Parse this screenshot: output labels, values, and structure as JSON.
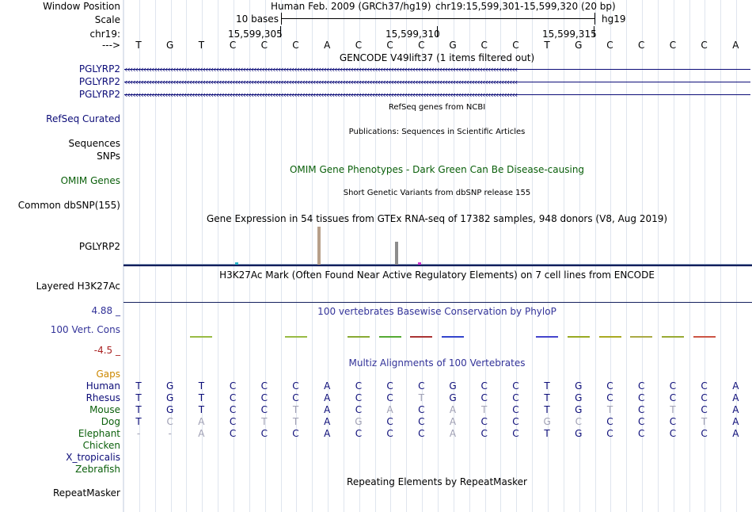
{
  "window_position": {
    "label": "Window Position",
    "assembly": "Human Feb. 2009 (GRCh37/hg19)",
    "range": "chr19:15,599,301-15,599,320 (20 bp)"
  },
  "scale": {
    "label": "Scale",
    "bases": "10 bases",
    "db": "hg19"
  },
  "chrom": {
    "label": "chr19:",
    "ticks": [
      "15,599,305",
      "15,599,310",
      "15,599,315"
    ]
  },
  "sequence": {
    "label": "--->",
    "bases": [
      "T",
      "G",
      "T",
      "C",
      "C",
      "C",
      "A",
      "C",
      "C",
      "C",
      "G",
      "C",
      "C",
      "T",
      "G",
      "C",
      "C",
      "C",
      "C",
      "A"
    ]
  },
  "gencode": {
    "title": "GENCODE V49lift37 (1 items filtered out)",
    "genes": [
      "PGLYRP2",
      "PGLYRP2",
      "PGLYRP2"
    ]
  },
  "refseq": {
    "title": "RefSeq genes from NCBI",
    "label": "RefSeq Curated"
  },
  "publications": {
    "title": "Publications: Sequences in Scientific Articles",
    "label1": "Sequences",
    "label2": "SNPs"
  },
  "omim": {
    "title": "OMIM Gene Phenotypes - Dark Green Can Be Disease-causing",
    "label": "OMIM Genes"
  },
  "dbsnp": {
    "title": "Short Genetic Variants from dbSNP release 155",
    "label": "Common dbSNP(155)"
  },
  "gtex": {
    "title": "Gene Expression in 54 tissues from GTEx RNA-seq of 17382 samples, 948 donors (V8, Aug 2019)",
    "label": "PGLYRP2",
    "bars": [
      {
        "tissue_color": "#b8a08a",
        "value": 1.0
      },
      {
        "tissue_color": "#8c8c8c",
        "value": 0.6
      },
      {
        "tissue_color": "#28b4c8",
        "value": 0.06
      },
      {
        "tissue_color": "#cc33cc",
        "value": 0.06
      }
    ]
  },
  "h3k27ac": {
    "title": "H3K27Ac Mark (Often Found Near Active Regulatory Elements) on 7 cell lines from ENCODE",
    "label": "Layered H3K27Ac"
  },
  "phylop": {
    "title": "100 vertebrates Basewise Conservation by PhyloP",
    "label": "100 Vert. Cons",
    "max": "4.88 _",
    "min": "-4.5 _"
  },
  "multiz": {
    "title": "Multiz Alignments of 100 Vertebrates",
    "species": [
      {
        "name": "Human",
        "bases": [
          "T",
          "G",
          "T",
          "C",
          "C",
          "C",
          "A",
          "C",
          "C",
          "C",
          "G",
          "C",
          "C",
          "T",
          "G",
          "C",
          "C",
          "C",
          "C",
          "A"
        ]
      },
      {
        "name": "Rhesus",
        "bases": [
          "T",
          "G",
          "T",
          "C",
          "C",
          "C",
          "A",
          "C",
          "C",
          "T",
          "G",
          "C",
          "C",
          "T",
          "G",
          "C",
          "C",
          "C",
          "C",
          "A"
        ]
      },
      {
        "name": "Mouse",
        "bases": [
          "T",
          "G",
          "T",
          "C",
          "C",
          "T",
          "A",
          "C",
          "A",
          "C",
          "A",
          "T",
          "C",
          "T",
          "G",
          "T",
          "C",
          "T",
          "C",
          "A"
        ]
      },
      {
        "name": "Dog",
        "bases": [
          "T",
          "C",
          "A",
          "C",
          "T",
          "T",
          "A",
          "G",
          "C",
          "C",
          "A",
          "C",
          "C",
          "G",
          "C",
          "C",
          "C",
          "C",
          "T",
          "A"
        ]
      },
      {
        "name": "Elephant",
        "bases": [
          "-",
          "-",
          "A",
          "C",
          "C",
          "C",
          "A",
          "C",
          "C",
          "C",
          "A",
          "C",
          "C",
          "T",
          "G",
          "C",
          "C",
          "C",
          "C",
          "A"
        ]
      },
      {
        "name": "Chicken",
        "bases": []
      },
      {
        "name": "X_tropicalis",
        "bases": []
      },
      {
        "name": "Zebrafish",
        "bases": []
      }
    ]
  },
  "repeatmasker": {
    "title": "Repeating Elements by RepeatMasker",
    "label": "RepeatMasker"
  },
  "colors": {
    "gene_blue": "#0c0c78",
    "omim_green": "#0a5f0a",
    "phylop_navy": "#333399",
    "gaps_orange": "#cc8800"
  }
}
